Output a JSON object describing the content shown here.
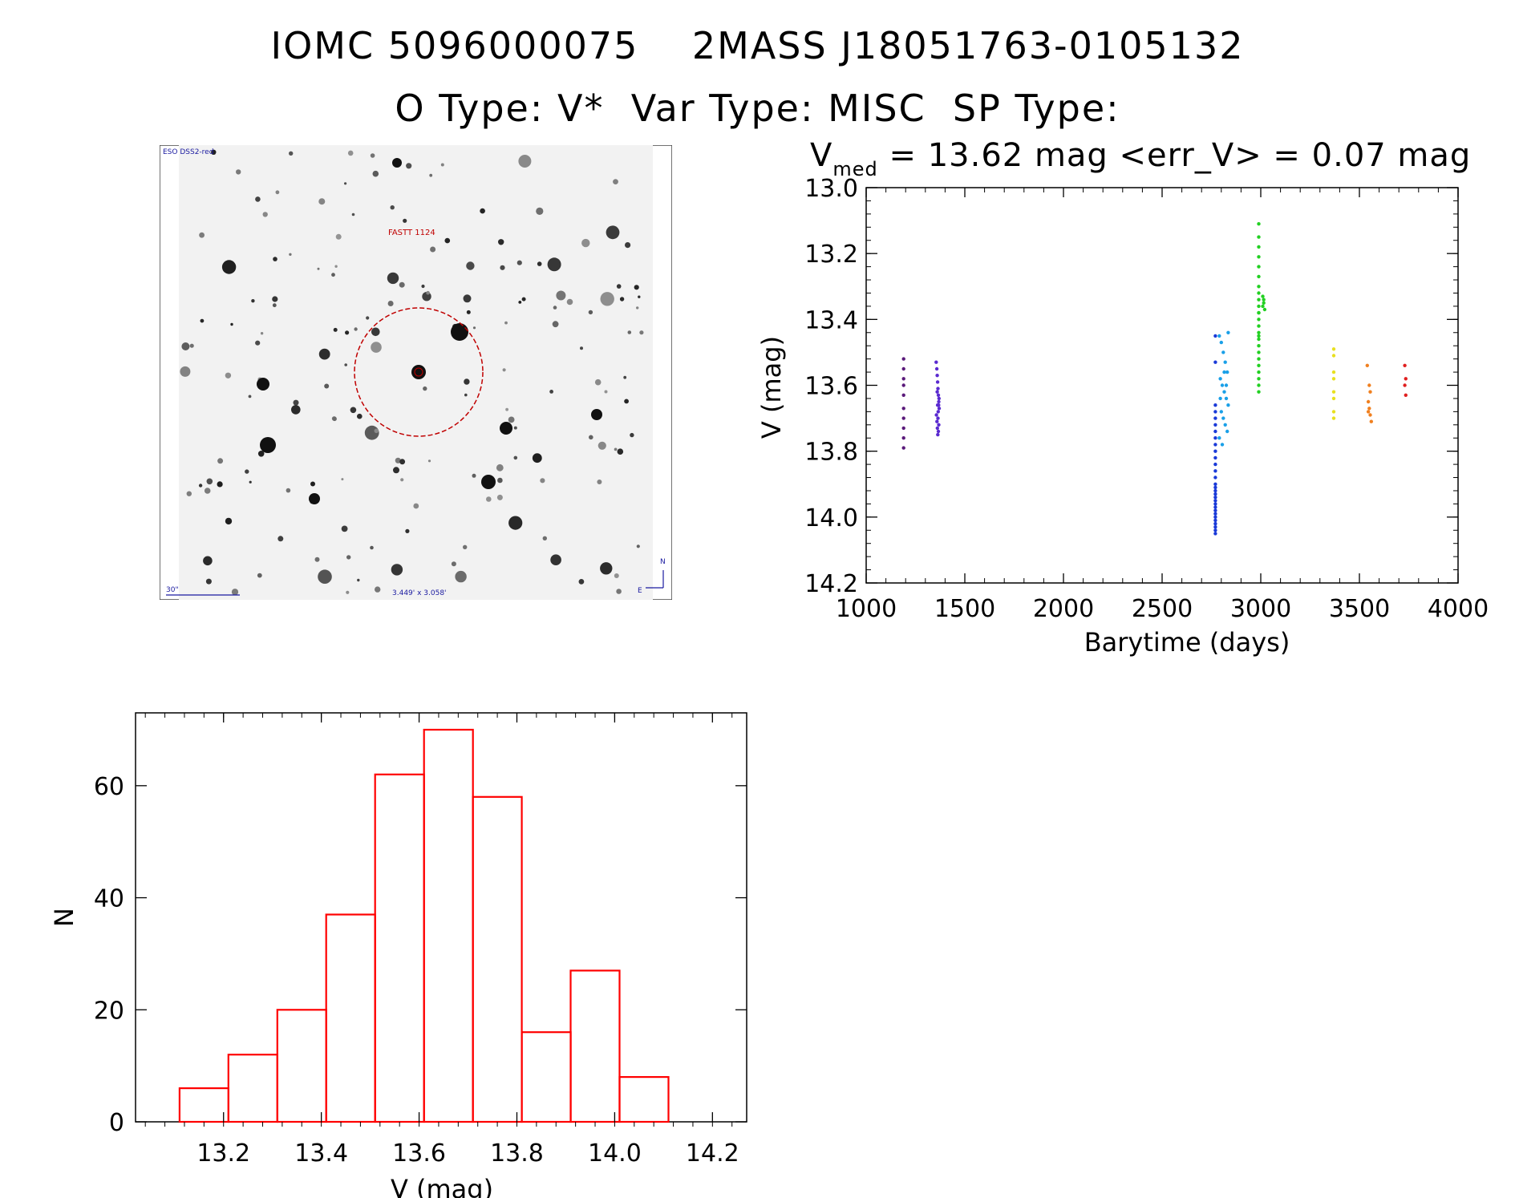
{
  "header": {
    "line1": "IOMC 5096000075    2MASS J18051763-0105132",
    "line2": "O Type: V*  Var Type: MISC  SP Type:"
  },
  "sky_image": {
    "survey_label": "ESO DSS2-red",
    "target_label": "FASTT 1124",
    "scale_label": "30\"",
    "fov_label": "3.449' x 3.058'",
    "compass_n": "N",
    "compass_e": "E"
  },
  "colors": {
    "histogram": "#ff0000",
    "circle": "#c00000",
    "sky_text_blue": "#1a1aa0"
  },
  "chart_data": [
    {
      "type": "scatter",
      "title_prefix": "V",
      "title_subscript": "med",
      "title_rest": " = 13.62 mag <err_V> = 0.07 mag",
      "xlabel": "Barytime (days)",
      "ylabel": "V (mag)",
      "xlim": [
        1000,
        4000
      ],
      "ylim": [
        14.2,
        13.0
      ],
      "xticks": [
        1000,
        1500,
        2000,
        2500,
        3000,
        3500,
        4000
      ],
      "xtick_labels": [
        "1000",
        "1500",
        "2000",
        "2500",
        "3000",
        "3500",
        "4000"
      ],
      "yticks": [
        13.0,
        13.2,
        13.4,
        13.6,
        13.8,
        14.0,
        14.2
      ],
      "ytick_labels": [
        "13.0",
        "13.2",
        "13.4",
        "13.6",
        "13.8",
        "14.0",
        "14.2"
      ],
      "series": [
        {
          "name": "s1",
          "color": "#5a1a7a",
          "x": [
            1190,
            1190,
            1190,
            1190,
            1190,
            1190,
            1190,
            1190,
            1190,
            1190
          ],
          "y": [
            13.52,
            13.55,
            13.58,
            13.6,
            13.63,
            13.67,
            13.7,
            13.73,
            13.76,
            13.79
          ]
        },
        {
          "name": "s2",
          "color": "#5a2ad0",
          "x": [
            1355,
            1358,
            1360,
            1362,
            1364,
            1366,
            1368,
            1370,
            1356,
            1359,
            1361,
            1363,
            1365,
            1367,
            1369,
            1360,
            1364,
            1368,
            1366,
            1362
          ],
          "y": [
            13.53,
            13.55,
            13.57,
            13.59,
            13.61,
            13.63,
            13.65,
            13.67,
            13.69,
            13.71,
            13.73,
            13.75,
            13.68,
            13.66,
            13.64,
            13.62,
            13.7,
            13.72,
            13.74,
            13.66
          ]
        },
        {
          "name": "s3",
          "color": "#1a3ad8",
          "x": [
            2770,
            2770,
            2770,
            2770,
            2770,
            2770,
            2770,
            2770,
            2770,
            2770,
            2770,
            2770,
            2770,
            2770,
            2770,
            2770,
            2770,
            2770,
            2770,
            2770,
            2770,
            2770,
            2770,
            2770,
            2770,
            2770,
            2770,
            2770,
            2770,
            2770
          ],
          "y": [
            13.45,
            13.53,
            13.66,
            13.68,
            13.7,
            13.72,
            13.74,
            13.76,
            13.78,
            13.8,
            13.82,
            13.84,
            13.86,
            13.88,
            13.9,
            13.91,
            13.92,
            13.93,
            13.94,
            13.95,
            13.96,
            13.97,
            13.98,
            13.99,
            14.0,
            14.01,
            14.02,
            14.03,
            14.04,
            14.05
          ]
        },
        {
          "name": "s4",
          "color": "#1aa0e8",
          "x": [
            2790,
            2800,
            2810,
            2820,
            2830,
            2795,
            2805,
            2815,
            2825,
            2835,
            2800,
            2810,
            2820,
            2830,
            2790,
            2805,
            2815,
            2825,
            2795,
            2835
          ],
          "y": [
            13.45,
            13.47,
            13.5,
            13.53,
            13.56,
            13.58,
            13.6,
            13.62,
            13.64,
            13.66,
            13.68,
            13.7,
            13.72,
            13.74,
            13.76,
            13.78,
            13.56,
            13.6,
            13.64,
            13.44
          ]
        },
        {
          "name": "s5",
          "color": "#22d022",
          "x": [
            2990,
            2990,
            2990,
            2990,
            2990,
            2990,
            2990,
            2990,
            2990,
            2990,
            2990,
            2990,
            2990,
            2990,
            2990,
            2990,
            2990,
            2990,
            2990,
            2990,
            2990,
            2990,
            2990,
            2990,
            2990,
            3010,
            3015,
            3020,
            3015,
            3010
          ],
          "y": [
            13.11,
            13.15,
            13.18,
            13.21,
            13.24,
            13.27,
            13.3,
            13.32,
            13.34,
            13.36,
            13.38,
            13.4,
            13.42,
            13.44,
            13.46,
            13.48,
            13.5,
            13.52,
            13.54,
            13.56,
            13.58,
            13.6,
            13.62,
            13.38,
            13.45,
            13.33,
            13.35,
            13.37,
            13.34,
            13.36
          ]
        },
        {
          "name": "s6",
          "color": "#e8e020",
          "x": [
            3370,
            3370,
            3370,
            3370,
            3370,
            3370,
            3370,
            3370
          ],
          "y": [
            13.49,
            13.51,
            13.56,
            13.58,
            13.62,
            13.64,
            13.68,
            13.7
          ]
        },
        {
          "name": "s7",
          "color": "#f08020",
          "x": [
            3540,
            3550,
            3555,
            3545,
            3550,
            3555,
            3560,
            3545
          ],
          "y": [
            13.54,
            13.6,
            13.62,
            13.65,
            13.67,
            13.69,
            13.71,
            13.68
          ]
        },
        {
          "name": "s8",
          "color": "#e02020",
          "x": [
            3730,
            3735,
            3730,
            3735
          ],
          "y": [
            13.54,
            13.58,
            13.6,
            13.63
          ]
        }
      ]
    },
    {
      "type": "bar",
      "title": "",
      "xlabel": "V (mag)",
      "ylabel": "N",
      "xlim": [
        13.02,
        14.27
      ],
      "ylim": [
        0,
        73
      ],
      "bin_edges": [
        13.11,
        13.21,
        13.31,
        13.41,
        13.51,
        13.61,
        13.71,
        13.81,
        13.91,
        14.01,
        14.11
      ],
      "values": [
        6,
        12,
        20,
        37,
        62,
        70,
        58,
        16,
        27,
        8
      ],
      "xticks": [
        13.2,
        13.4,
        13.6,
        13.8,
        14.0,
        14.2
      ],
      "xtick_labels": [
        "13.2",
        "13.4",
        "13.6",
        "13.8",
        "14.0",
        "14.2"
      ],
      "yticks": [
        0,
        20,
        40,
        60
      ],
      "ytick_labels": [
        "0",
        "20",
        "40",
        "60"
      ]
    }
  ]
}
